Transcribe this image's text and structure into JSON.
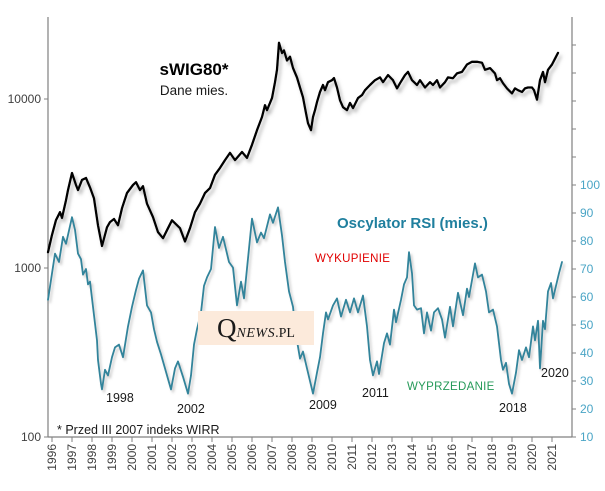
{
  "title": {
    "text": "sWIG80*",
    "subtitle": "Dane mies."
  },
  "rsi_label": "Oscylator RSI (mies.)",
  "reference_labels": {
    "overbought": "WYKUPIENIE",
    "oversold": "WYPRZEDANIE"
  },
  "footnote": "* Przed III 2007 indeks WIRR",
  "watermark": {
    "q": "Q",
    "news": "NEWS",
    "suffix": ".PL"
  },
  "annotations": [
    {
      "text": "1998"
    },
    {
      "text": "2002"
    },
    {
      "text": "2009"
    },
    {
      "text": "2011"
    },
    {
      "text": "2018"
    },
    {
      "text": "2020"
    }
  ],
  "colors": {
    "swig80_line": "#000000",
    "rsi_line": "#31849b",
    "overbought_line": "#e10000",
    "oversold_line": "#1b7e4b",
    "axis": "#808080",
    "tick_text": "#404040",
    "right_tick_text": "#4aa5c6"
  },
  "chart_data": {
    "type": "line",
    "title": "sWIG80*",
    "subtitle": "Dane mies.",
    "grid": false,
    "legend": "none (in-plot text labels)",
    "x_axis": {
      "ticks": [
        1996,
        1997,
        1998,
        1999,
        2000,
        2001,
        2002,
        2003,
        2004,
        2005,
        2006,
        2007,
        2008,
        2009,
        2010,
        2011,
        2012,
        2013,
        2014,
        2015,
        2016,
        2017,
        2018,
        2019,
        2020,
        2021
      ],
      "tick_label_rotation": -90,
      "range": [
        1995.8,
        2022.0
      ]
    },
    "y_axis_left": {
      "scale": "log",
      "ticks": [
        100,
        1000,
        10000
      ],
      "tick_labels": [
        "100",
        "1000",
        "10000"
      ],
      "range": [
        100,
        30000
      ],
      "applies_to": "sWIG80"
    },
    "y_axis_right": {
      "scale": "linear",
      "ticks": [
        10,
        20,
        30,
        40,
        50,
        60,
        70,
        80,
        90,
        100
      ],
      "range": [
        10,
        160
      ],
      "applies_to": "Oscylator RSI (mies.)"
    },
    "reference_lines": [
      {
        "name": "WYKUPIENIE",
        "axis": "right",
        "value": 70,
        "color_key": "overbought_line"
      },
      {
        "name": "WYPRZEDANIE",
        "axis": "right",
        "value": 30,
        "color_key": "oversold_line"
      }
    ],
    "series": [
      {
        "name": "sWIG80",
        "axis": "left",
        "color_key": "swig80_line",
        "width": 2.3,
        "points": [
          [
            1995.8,
            1240
          ],
          [
            1996,
            1570
          ],
          [
            1996.2,
            1920
          ],
          [
            1996.4,
            2140
          ],
          [
            1996.5,
            1980
          ],
          [
            1996.7,
            2520
          ],
          [
            1996.8,
            2890
          ],
          [
            1997,
            3650
          ],
          [
            1997.2,
            3100
          ],
          [
            1997.3,
            2890
          ],
          [
            1997.5,
            3320
          ],
          [
            1997.7,
            3410
          ],
          [
            1997.9,
            3000
          ],
          [
            1998.1,
            2580
          ],
          [
            1998.3,
            1790
          ],
          [
            1998.5,
            1350
          ],
          [
            1998.75,
            1740
          ],
          [
            1998.9,
            1870
          ],
          [
            1999.1,
            1950
          ],
          [
            1999.3,
            1790
          ],
          [
            1999.5,
            2260
          ],
          [
            1999.75,
            2780
          ],
          [
            2000.05,
            3100
          ],
          [
            2000.2,
            3220
          ],
          [
            2000.4,
            2890
          ],
          [
            2000.55,
            3050
          ],
          [
            2000.75,
            2400
          ],
          [
            2001.05,
            2000
          ],
          [
            2001.3,
            1630
          ],
          [
            2001.55,
            1500
          ],
          [
            2001.8,
            1720
          ],
          [
            2002,
            1915
          ],
          [
            2002.4,
            1720
          ],
          [
            2002.65,
            1435
          ],
          [
            2002.9,
            1720
          ],
          [
            2003.15,
            2140
          ],
          [
            2003.4,
            2400
          ],
          [
            2003.65,
            2780
          ],
          [
            2003.9,
            2970
          ],
          [
            2004.15,
            3560
          ],
          [
            2004.4,
            3910
          ],
          [
            2004.65,
            4350
          ],
          [
            2004.9,
            4800
          ],
          [
            2005.15,
            4350
          ],
          [
            2005.5,
            4860
          ],
          [
            2005.75,
            4480
          ],
          [
            2006,
            5360
          ],
          [
            2006.25,
            6540
          ],
          [
            2006.5,
            7820
          ],
          [
            2006.65,
            9190
          ],
          [
            2006.75,
            8590
          ],
          [
            2007,
            10130
          ],
          [
            2007.15,
            12570
          ],
          [
            2007.25,
            14880
          ],
          [
            2007.35,
            21500
          ],
          [
            2007.5,
            18700
          ],
          [
            2007.6,
            19400
          ],
          [
            2007.75,
            16900
          ],
          [
            2007.9,
            17800
          ],
          [
            2008.05,
            15250
          ],
          [
            2008.25,
            13400
          ],
          [
            2008.4,
            11700
          ],
          [
            2008.55,
            10230
          ],
          [
            2008.7,
            8250
          ],
          [
            2008.8,
            7190
          ],
          [
            2008.95,
            6540
          ],
          [
            2009.05,
            7820
          ],
          [
            2009.15,
            8590
          ],
          [
            2009.25,
            9590
          ],
          [
            2009.4,
            11000
          ],
          [
            2009.55,
            12100
          ],
          [
            2009.65,
            11270
          ],
          [
            2009.8,
            12570
          ],
          [
            2010,
            12920
          ],
          [
            2010.1,
            13300
          ],
          [
            2010.25,
            11700
          ],
          [
            2010.4,
            9830
          ],
          [
            2010.55,
            8940
          ],
          [
            2010.75,
            8590
          ],
          [
            2010.9,
            9480
          ],
          [
            2011.05,
            8830
          ],
          [
            2011.3,
            10130
          ],
          [
            2011.5,
            10550
          ],
          [
            2011.65,
            11270
          ],
          [
            2011.9,
            12100
          ],
          [
            2012.15,
            12920
          ],
          [
            2012.4,
            13420
          ],
          [
            2012.55,
            12570
          ],
          [
            2012.8,
            13850
          ],
          [
            2013.05,
            12920
          ],
          [
            2013.25,
            11550
          ],
          [
            2013.4,
            12400
          ],
          [
            2013.65,
            13850
          ],
          [
            2013.8,
            14470
          ],
          [
            2014,
            12920
          ],
          [
            2014.25,
            12100
          ],
          [
            2014.4,
            12920
          ],
          [
            2014.65,
            11700
          ],
          [
            2014.9,
            12570
          ],
          [
            2015.05,
            12100
          ],
          [
            2015.25,
            12920
          ],
          [
            2015.4,
            11700
          ],
          [
            2015.65,
            12570
          ],
          [
            2015.8,
            13420
          ],
          [
            2016.05,
            13280
          ],
          [
            2016.25,
            14180
          ],
          [
            2016.5,
            14470
          ],
          [
            2016.75,
            16000
          ],
          [
            2017,
            16600
          ],
          [
            2017.25,
            16600
          ],
          [
            2017.5,
            16400
          ],
          [
            2017.65,
            14880
          ],
          [
            2017.9,
            15240
          ],
          [
            2018.15,
            14180
          ],
          [
            2018.25,
            12920
          ],
          [
            2018.4,
            13280
          ],
          [
            2018.55,
            12400
          ],
          [
            2018.75,
            11550
          ],
          [
            2019,
            10800
          ],
          [
            2019.15,
            11550
          ],
          [
            2019.3,
            11270
          ],
          [
            2019.5,
            11000
          ],
          [
            2019.65,
            11550
          ],
          [
            2019.8,
            11700
          ],
          [
            2020,
            11700
          ],
          [
            2020.1,
            11270
          ],
          [
            2020.25,
            9900
          ],
          [
            2020.4,
            12920
          ],
          [
            2020.55,
            14470
          ],
          [
            2020.65,
            12570
          ],
          [
            2020.8,
            14880
          ],
          [
            2021,
            16000
          ],
          [
            2021.15,
            17320
          ],
          [
            2021.3,
            18730
          ]
        ]
      },
      {
        "name": "Oscylator RSI (mies.)",
        "axis": "right",
        "color_key": "rsi_line",
        "width": 1.8,
        "points": [
          [
            1995.8,
            59
          ],
          [
            1996.15,
            75.5
          ],
          [
            1996.35,
            72.5
          ],
          [
            1996.55,
            81.5
          ],
          [
            1996.7,
            79
          ],
          [
            1997,
            88.5
          ],
          [
            1997.15,
            84
          ],
          [
            1997.3,
            75.5
          ],
          [
            1997.45,
            73.5
          ],
          [
            1997.55,
            68
          ],
          [
            1997.7,
            70
          ],
          [
            1997.8,
            64.5
          ],
          [
            1997.9,
            65.5
          ],
          [
            1998.05,
            56.5
          ],
          [
            1998.25,
            44.5
          ],
          [
            1998.3,
            37.5
          ],
          [
            1998.45,
            29
          ],
          [
            1998.5,
            27
          ],
          [
            1998.65,
            34
          ],
          [
            1998.8,
            32
          ],
          [
            1999,
            38.5
          ],
          [
            1999.15,
            42
          ],
          [
            1999.35,
            43
          ],
          [
            1999.55,
            38.5
          ],
          [
            1999.8,
            49.5
          ],
          [
            2000,
            56.5
          ],
          [
            2000.2,
            62.5
          ],
          [
            2000.35,
            66.5
          ],
          [
            2000.55,
            69.5
          ],
          [
            2000.75,
            57
          ],
          [
            2000.95,
            54.5
          ],
          [
            2001.1,
            48.5
          ],
          [
            2001.25,
            44
          ],
          [
            2001.45,
            39.5
          ],
          [
            2001.65,
            34.5
          ],
          [
            2001.95,
            27
          ],
          [
            2002.15,
            34.5
          ],
          [
            2002.3,
            37
          ],
          [
            2002.55,
            31.5
          ],
          [
            2002.8,
            25.5
          ],
          [
            2002.95,
            32
          ],
          [
            2003.1,
            43
          ],
          [
            2003.25,
            48.5
          ],
          [
            2003.45,
            54.5
          ],
          [
            2003.6,
            64
          ],
          [
            2003.75,
            67
          ],
          [
            2003.95,
            70
          ],
          [
            2004.15,
            85
          ],
          [
            2004.35,
            77.5
          ],
          [
            2004.55,
            81.5
          ],
          [
            2004.85,
            72.5
          ],
          [
            2005.05,
            70.5
          ],
          [
            2005.25,
            57
          ],
          [
            2005.45,
            65.5
          ],
          [
            2005.6,
            59.5
          ],
          [
            2006,
            88
          ],
          [
            2006.25,
            79.5
          ],
          [
            2006.45,
            83
          ],
          [
            2006.6,
            81
          ],
          [
            2006.9,
            89.5
          ],
          [
            2007.05,
            86.5
          ],
          [
            2007.3,
            92
          ],
          [
            2007.5,
            82
          ],
          [
            2007.65,
            72.5
          ],
          [
            2007.85,
            62
          ],
          [
            2008.05,
            56.5
          ],
          [
            2008.2,
            46.5
          ],
          [
            2008.4,
            38
          ],
          [
            2008.55,
            40.5
          ],
          [
            2008.75,
            34.5
          ],
          [
            2009.05,
            25.5
          ],
          [
            2009.25,
            33
          ],
          [
            2009.4,
            38.5
          ],
          [
            2009.55,
            47
          ],
          [
            2009.7,
            54.5
          ],
          [
            2009.8,
            52
          ],
          [
            2010.05,
            57
          ],
          [
            2010.25,
            59.5
          ],
          [
            2010.45,
            53
          ],
          [
            2010.7,
            59
          ],
          [
            2010.9,
            54.5
          ],
          [
            2011.1,
            59.5
          ],
          [
            2011.3,
            54.5
          ],
          [
            2011.55,
            60.5
          ],
          [
            2011.75,
            49.5
          ],
          [
            2011.9,
            37.5
          ],
          [
            2012.05,
            32
          ],
          [
            2012.25,
            37
          ],
          [
            2012.35,
            32.5
          ],
          [
            2012.6,
            43.5
          ],
          [
            2012.75,
            47
          ],
          [
            2012.9,
            43
          ],
          [
            2013.1,
            55.5
          ],
          [
            2013.2,
            51
          ],
          [
            2013.45,
            59
          ],
          [
            2013.6,
            64.5
          ],
          [
            2013.75,
            67
          ],
          [
            2013.85,
            76
          ],
          [
            2014,
            68.5
          ],
          [
            2014.1,
            57
          ],
          [
            2014.25,
            55.5
          ],
          [
            2014.45,
            56
          ],
          [
            2014.6,
            47
          ],
          [
            2014.75,
            54.5
          ],
          [
            2014.95,
            48
          ],
          [
            2015.1,
            54.5
          ],
          [
            2015.3,
            56
          ],
          [
            2015.5,
            52
          ],
          [
            2015.65,
            45.5
          ],
          [
            2015.9,
            56.5
          ],
          [
            2016.05,
            49.5
          ],
          [
            2016.3,
            61.5
          ],
          [
            2016.55,
            53.5
          ],
          [
            2016.75,
            63
          ],
          [
            2016.85,
            60
          ],
          [
            2017.15,
            72
          ],
          [
            2017.3,
            67
          ],
          [
            2017.5,
            68
          ],
          [
            2017.7,
            62
          ],
          [
            2017.85,
            54.5
          ],
          [
            2018.05,
            55.5
          ],
          [
            2018.25,
            49.5
          ],
          [
            2018.45,
            37.5
          ],
          [
            2018.55,
            34
          ],
          [
            2018.7,
            36.5
          ],
          [
            2018.85,
            29
          ],
          [
            2019,
            25.5
          ],
          [
            2019.2,
            33
          ],
          [
            2019.35,
            41
          ],
          [
            2019.5,
            37.5
          ],
          [
            2019.7,
            42
          ],
          [
            2019.85,
            38.5
          ],
          [
            2020.05,
            49.5
          ],
          [
            2020.15,
            44.5
          ],
          [
            2020.3,
            51.5
          ],
          [
            2020.4,
            34.5
          ],
          [
            2020.55,
            51.5
          ],
          [
            2020.65,
            48.5
          ],
          [
            2020.8,
            62
          ],
          [
            2020.95,
            65
          ],
          [
            2021.05,
            59.5
          ],
          [
            2021.25,
            65.5
          ],
          [
            2021.35,
            68.5
          ],
          [
            2021.5,
            72.5
          ]
        ]
      }
    ]
  }
}
